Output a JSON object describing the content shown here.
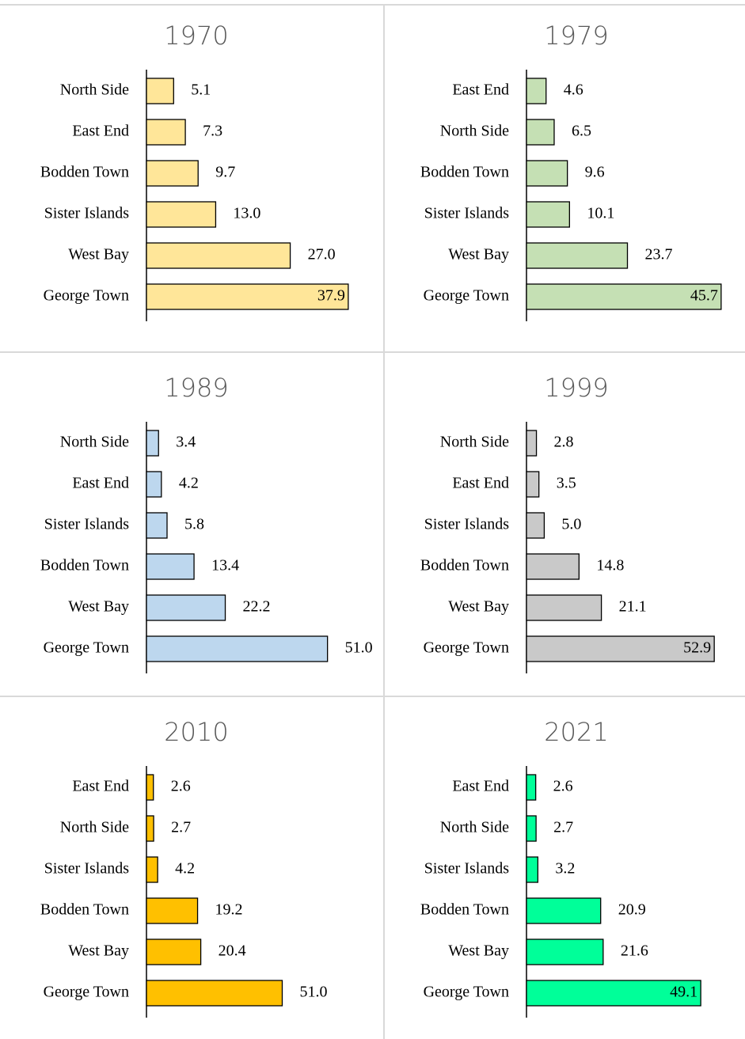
{
  "chart_data": [
    {
      "type": "bar",
      "orientation": "horizontal",
      "title": "1970",
      "color": "#FFE699",
      "xlim": [
        0,
        40
      ],
      "categories": [
        "North Side",
        "East End",
        "Bodden Town",
        "Sister Islands",
        "West Bay",
        "George Town"
      ],
      "values": [
        5.1,
        7.3,
        9.7,
        13.0,
        27.0,
        37.9
      ],
      "value_labels": [
        "5.1",
        "7.3",
        "9.7",
        "13.0",
        "27.0",
        "37.9"
      ]
    },
    {
      "type": "bar",
      "orientation": "horizontal",
      "title": "1979",
      "color": "#C5E0B4",
      "xlim": [
        0,
        50
      ],
      "categories": [
        "East End",
        "North Side",
        "Bodden Town",
        "Sister Islands",
        "West Bay",
        "George Town"
      ],
      "values": [
        4.6,
        6.5,
        9.6,
        10.1,
        23.7,
        45.7
      ],
      "value_labels": [
        "4.6",
        "6.5",
        "9.6",
        "10.1",
        "23.7",
        "45.7"
      ]
    },
    {
      "type": "bar",
      "orientation": "horizontal",
      "title": "1989",
      "color": "#BDD7EE",
      "xlim": [
        0,
        60
      ],
      "categories": [
        "North Side",
        "East End",
        "Sister Islands",
        "Bodden Town",
        "West Bay",
        "George Town"
      ],
      "values": [
        3.4,
        4.2,
        5.8,
        13.4,
        22.2,
        51.0
      ],
      "value_labels": [
        "3.4",
        "4.2",
        "5.8",
        "13.4",
        "22.2",
        "51.0"
      ]
    },
    {
      "type": "bar",
      "orientation": "horizontal",
      "title": "1999",
      "color": "#C9C9C9",
      "xlim": [
        0,
        60
      ],
      "categories": [
        "North Side",
        "East End",
        "Sister Islands",
        "Bodden Town",
        "West Bay",
        "George Town"
      ],
      "values": [
        2.8,
        3.5,
        5.0,
        14.8,
        21.1,
        52.9
      ],
      "value_labels": [
        "2.8",
        "3.5",
        "5.0",
        "14.8",
        "21.1",
        "52.9"
      ]
    },
    {
      "type": "bar",
      "orientation": "horizontal",
      "title": "2010",
      "color": "#FFC000",
      "xlim": [
        0,
        80
      ],
      "categories": [
        "East End",
        "North Side",
        "Sister Islands",
        "Bodden Town",
        "West Bay",
        "George Town"
      ],
      "values": [
        2.6,
        2.7,
        4.2,
        19.2,
        20.4,
        51.0
      ],
      "value_labels": [
        "2.6",
        "2.7",
        "4.2",
        "19.2",
        "20.4",
        "51.0"
      ]
    },
    {
      "type": "bar",
      "orientation": "horizontal",
      "title": "2021",
      "color": "#00FF99",
      "xlim": [
        0,
        60
      ],
      "categories": [
        "East End",
        "North Side",
        "Sister Islands",
        "Bodden Town",
        "West Bay",
        "George Town"
      ],
      "values": [
        2.6,
        2.7,
        3.2,
        20.9,
        21.6,
        49.1
      ],
      "value_labels": [
        "2.6",
        "2.7",
        "3.2",
        "20.9",
        "21.6",
        "49.1"
      ]
    }
  ]
}
